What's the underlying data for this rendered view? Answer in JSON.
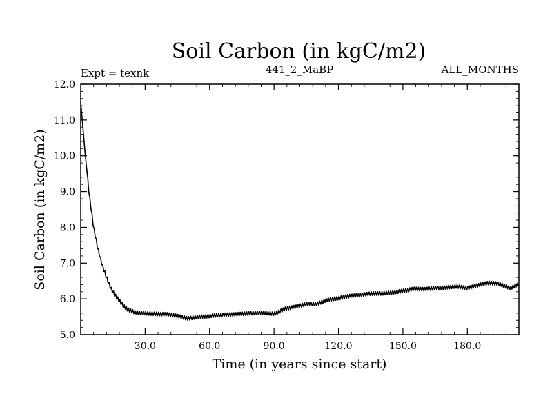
{
  "chart_data": {
    "type": "line",
    "title": "Soil Carbon (in kgC/m2)",
    "subtitle_left": "Expt = texnk",
    "subtitle_center": "441_2_MaBP",
    "subtitle_right": "ALL_MONTHS",
    "xlabel": "Time (in years since start)",
    "ylabel": "Soil Carbon (in kgC/m2)",
    "xlim": [
      0,
      204
    ],
    "ylim": [
      5.0,
      12.0
    ],
    "x_ticks": [
      30,
      60,
      90,
      120,
      150,
      180
    ],
    "x_tick_labels": [
      "30.0",
      "60.0",
      "90.0",
      "120.0",
      "150.0",
      "180.0"
    ],
    "y_ticks": [
      5,
      6,
      7,
      8,
      9,
      10,
      11,
      12
    ],
    "y_tick_labels": [
      "5.0",
      "6.0",
      "7.0",
      "8.0",
      "9.0",
      "10.0",
      "11.0",
      "12.0"
    ],
    "seasonal_amplitude": 0.05,
    "series": [
      {
        "name": "Soil Carbon",
        "color": "#000000",
        "x": [
          0,
          2,
          4,
          6,
          8,
          10,
          12,
          14,
          16,
          18,
          20,
          22,
          25,
          30,
          35,
          40,
          45,
          50,
          55,
          60,
          65,
          70,
          75,
          80,
          85,
          90,
          95,
          100,
          105,
          110,
          115,
          120,
          125,
          130,
          135,
          140,
          145,
          150,
          155,
          160,
          165,
          170,
          175,
          180,
          185,
          190,
          195,
          200,
          204
        ],
        "y": [
          11.5,
          10.1,
          8.9,
          8.0,
          7.4,
          6.95,
          6.6,
          6.3,
          6.1,
          5.95,
          5.8,
          5.7,
          5.63,
          5.6,
          5.58,
          5.57,
          5.52,
          5.45,
          5.5,
          5.52,
          5.55,
          5.56,
          5.58,
          5.6,
          5.62,
          5.58,
          5.72,
          5.78,
          5.85,
          5.86,
          5.98,
          6.02,
          6.08,
          6.1,
          6.15,
          6.15,
          6.18,
          6.22,
          6.28,
          6.27,
          6.3,
          6.32,
          6.35,
          6.3,
          6.38,
          6.45,
          6.42,
          6.3,
          6.42
        ]
      }
    ]
  }
}
